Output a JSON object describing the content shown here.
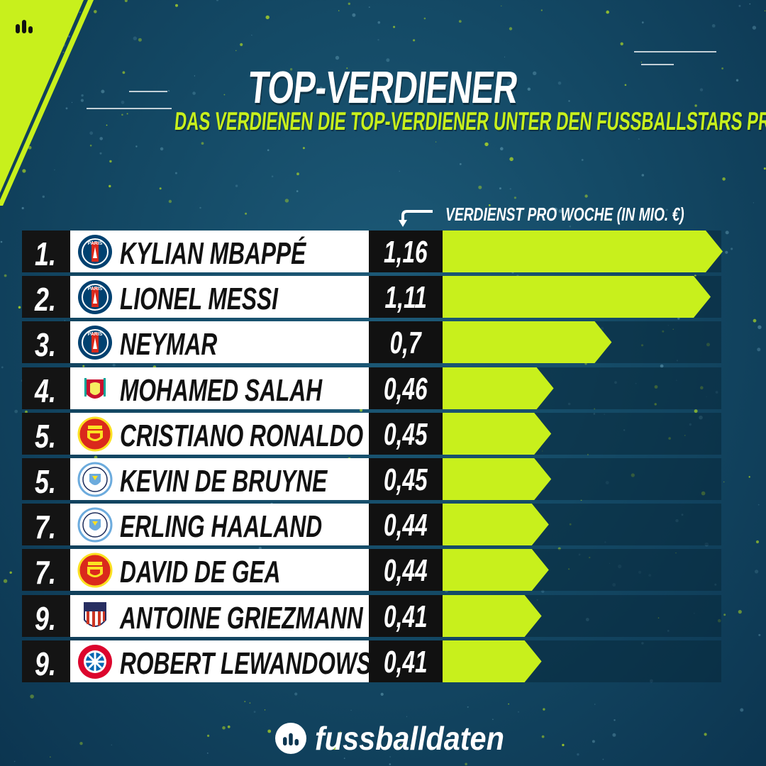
{
  "header": {
    "title": "TOP-VERDIENER",
    "subtitle": "DAS VERDIENEN DIE TOP-VERDIENER UNTER DEN FUSSBALLSTARS PRO WOCHE"
  },
  "colors": {
    "accent": "#c8f01c",
    "background": "#144a66",
    "rank_box": "#141414",
    "name_box": "#ffffff"
  },
  "brand": {
    "name": "fussballdaten",
    "icon": "bar-chart-logo-icon"
  },
  "chart_data": {
    "type": "bar",
    "orientation": "horizontal",
    "title": "TOP-VERDIENER",
    "subtitle": "DAS VERDIENEN DIE TOP-VERDIENER UNTER DEN FUSSBALLSTARS PRO WOCHE",
    "value_label": "VERDIENST PRO WOCHE (IN MIO. €)",
    "xlim": [
      0,
      1.16
    ],
    "grid": false,
    "legend": "none",
    "rows": [
      {
        "rank": "1.",
        "name": "KYLIAN MBAPPÉ",
        "club_icon": "psg-crest-icon",
        "value": 1.16,
        "value_label": "1,16"
      },
      {
        "rank": "2.",
        "name": "LIONEL MESSI",
        "club_icon": "psg-crest-icon",
        "value": 1.11,
        "value_label": "1,11"
      },
      {
        "rank": "3.",
        "name": "NEYMAR",
        "club_icon": "psg-crest-icon",
        "value": 0.7,
        "value_label": "0,7"
      },
      {
        "rank": "4.",
        "name": "MOHAMED SALAH",
        "club_icon": "liverpool-crest-icon",
        "value": 0.46,
        "value_label": "0,46"
      },
      {
        "rank": "5.",
        "name": "CRISTIANO RONALDO",
        "club_icon": "manchester-united-crest-icon",
        "value": 0.45,
        "value_label": "0,45"
      },
      {
        "rank": "5.",
        "name": "KEVIN DE BRUYNE",
        "club_icon": "manchester-city-crest-icon",
        "value": 0.45,
        "value_label": "0,45"
      },
      {
        "rank": "7.",
        "name": "ERLING HAALAND",
        "club_icon": "manchester-city-crest-icon",
        "value": 0.44,
        "value_label": "0,44"
      },
      {
        "rank": "7.",
        "name": "DAVID DE GEA",
        "club_icon": "manchester-united-crest-icon",
        "value": 0.44,
        "value_label": "0,44"
      },
      {
        "rank": "9.",
        "name": "ANTOINE GRIEZMANN",
        "club_icon": "atletico-madrid-crest-icon",
        "value": 0.41,
        "value_label": "0,41"
      },
      {
        "rank": "9.",
        "name": "ROBERT LEWANDOWSKI",
        "club_icon": "bayern-munich-crest-icon",
        "value": 0.41,
        "value_label": "0,41"
      }
    ]
  }
}
